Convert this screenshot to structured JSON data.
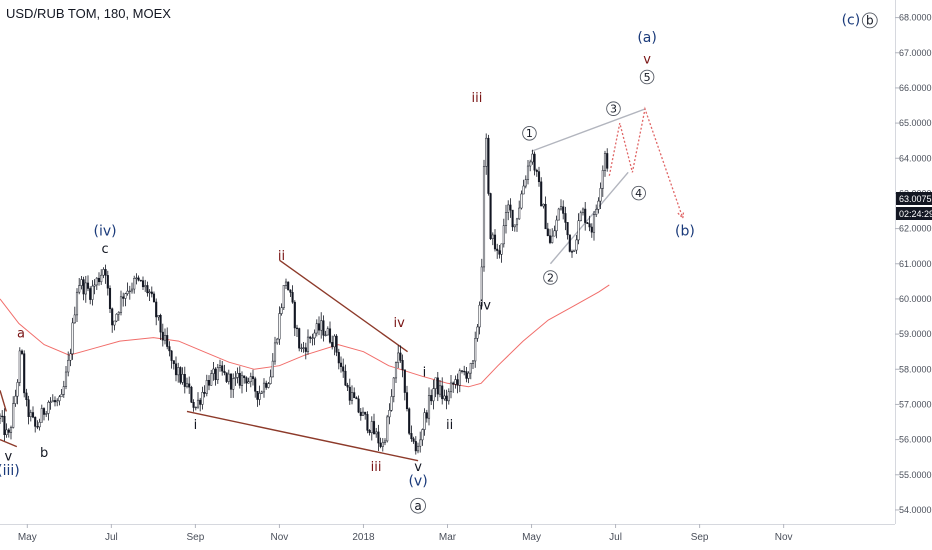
{
  "header": {
    "title": "USD/RUB TOM, 180, MOEX"
  },
  "price_badge": {
    "last_price": "63.0075",
    "countdown": "02:24:29",
    "color": "#131722"
  },
  "colors": {
    "candle": "#131722",
    "moving_average": "#ef5350",
    "trendline": "#8d3a2a",
    "triangle": "#b2b5be",
    "projection": "#e06666",
    "label_dark": "#131722",
    "label_red": "#7a1515",
    "label_blue": "#1a3a7a"
  },
  "chart_data": {
    "type": "candlestick",
    "symbol": "USD/RUB TOM",
    "interval": "180",
    "exchange": "MOEX",
    "y_ticks": [
      "54.0000",
      "55.0000",
      "56.0000",
      "57.0000",
      "58.0000",
      "59.0000",
      "60.0000",
      "61.0000",
      "62.0000",
      "63.0000",
      "64.0000",
      "65.0000",
      "66.0000",
      "67.0000",
      "68.0000"
    ],
    "ylim": [
      53.6,
      68.5
    ],
    "x_ticks": [
      "May",
      "Jul",
      "Sep",
      "Nov",
      "2018",
      "Mar",
      "May",
      "Jul",
      "Sep",
      "Nov"
    ],
    "x_tick_pos": [
      1.0,
      3.0,
      5.0,
      7.0,
      9.0,
      11.0,
      13.0,
      15.0,
      17.0,
      19.0
    ],
    "xlim": [
      0.35,
      21.65
    ],
    "price_path": [
      [
        0.35,
        56.6
      ],
      [
        0.55,
        56.0
      ],
      [
        0.75,
        57.5
      ],
      [
        0.85,
        58.7
      ],
      [
        0.95,
        57.0
      ],
      [
        1.2,
        56.3
      ],
      [
        1.5,
        57.1
      ],
      [
        1.8,
        57.0
      ],
      [
        2.0,
        58.3
      ],
      [
        2.2,
        60.5
      ],
      [
        2.5,
        60.2
      ],
      [
        2.7,
        60.6
      ],
      [
        2.85,
        61.0
      ],
      [
        3.0,
        59.2
      ],
      [
        3.3,
        60.2
      ],
      [
        3.6,
        60.5
      ],
      [
        3.9,
        60.2
      ],
      [
        4.2,
        59.0
      ],
      [
        4.5,
        58.0
      ],
      [
        4.8,
        57.5
      ],
      [
        5.0,
        56.9
      ],
      [
        5.3,
        57.7
      ],
      [
        5.6,
        57.9
      ],
      [
        5.9,
        57.6
      ],
      [
        6.2,
        57.8
      ],
      [
        6.5,
        57.3
      ],
      [
        6.8,
        57.9
      ],
      [
        7.0,
        59.5
      ],
      [
        7.15,
        60.6
      ],
      [
        7.3,
        59.8
      ],
      [
        7.5,
        58.5
      ],
      [
        7.8,
        59.0
      ],
      [
        8.0,
        59.2
      ],
      [
        8.3,
        58.8
      ],
      [
        8.6,
        57.5
      ],
      [
        8.9,
        56.8
      ],
      [
        9.2,
        56.3
      ],
      [
        9.45,
        55.8
      ],
      [
        9.65,
        57.0
      ],
      [
        9.85,
        58.7
      ],
      [
        10.05,
        56.5
      ],
      [
        10.25,
        55.6
      ],
      [
        10.45,
        56.6
      ],
      [
        10.7,
        57.6
      ],
      [
        10.95,
        57.1
      ],
      [
        11.15,
        57.6
      ],
      [
        11.4,
        57.9
      ],
      [
        11.6,
        58.0
      ],
      [
        11.8,
        60.3
      ],
      [
        11.9,
        65.1
      ],
      [
        12.0,
        62.0
      ],
      [
        12.2,
        61.2
      ],
      [
        12.45,
        62.6
      ],
      [
        12.6,
        62.1
      ],
      [
        12.8,
        63.2
      ],
      [
        13.0,
        64.2
      ],
      [
        13.2,
        63.0
      ],
      [
        13.45,
        61.5
      ],
      [
        13.7,
        62.7
      ],
      [
        13.95,
        61.3
      ],
      [
        14.2,
        62.5
      ],
      [
        14.45,
        62.0
      ],
      [
        14.6,
        63.0
      ],
      [
        14.75,
        64.2
      ],
      [
        14.85,
        63.5
      ]
    ],
    "moving_average": [
      [
        0.35,
        60.0
      ],
      [
        0.8,
        59.3
      ],
      [
        1.4,
        58.7
      ],
      [
        2.0,
        58.4
      ],
      [
        2.6,
        58.6
      ],
      [
        3.2,
        58.8
      ],
      [
        4.0,
        58.9
      ],
      [
        4.6,
        58.8
      ],
      [
        5.2,
        58.5
      ],
      [
        5.8,
        58.2
      ],
      [
        6.4,
        58.0
      ],
      [
        7.0,
        58.1
      ],
      [
        7.6,
        58.4
      ],
      [
        8.4,
        58.7
      ],
      [
        9.0,
        58.5
      ],
      [
        9.6,
        58.1
      ],
      [
        10.4,
        57.8
      ],
      [
        11.0,
        57.6
      ],
      [
        11.5,
        57.5
      ],
      [
        11.8,
        57.6
      ],
      [
        12.2,
        58.1
      ],
      [
        12.8,
        58.8
      ],
      [
        13.4,
        59.4
      ],
      [
        14.0,
        59.8
      ],
      [
        14.6,
        60.2
      ],
      [
        14.85,
        60.4
      ]
    ],
    "trendlines": [
      {
        "kind": "upper-wedge",
        "from": [
          7.0,
          61.1
        ],
        "to": [
          10.05,
          58.5
        ]
      },
      {
        "kind": "lower-wedge",
        "from": [
          4.8,
          56.8
        ],
        "to": [
          10.3,
          55.4
        ]
      },
      {
        "kind": "start-line",
        "from": [
          0.35,
          57.4
        ],
        "to": [
          0.5,
          56.8
        ]
      },
      {
        "kind": "start-line",
        "from": [
          0.35,
          56.0
        ],
        "to": [
          0.75,
          55.8
        ]
      },
      {
        "kind": "triangle-upper",
        "from": [
          13.0,
          64.2
        ],
        "to": [
          15.7,
          65.4
        ]
      },
      {
        "kind": "triangle-lower",
        "from": [
          13.45,
          61.0
        ],
        "to": [
          15.3,
          63.6
        ]
      }
    ],
    "projection": [
      [
        14.85,
        63.5
      ],
      [
        15.1,
        65.0
      ],
      [
        15.4,
        63.6
      ],
      [
        15.7,
        65.4
      ],
      [
        16.6,
        62.3
      ]
    ],
    "wave_labels": [
      {
        "text": "(iii)",
        "x": 0.55,
        "y": 55.0,
        "color": "blue",
        "circle": false,
        "size": 14
      },
      {
        "text": "v",
        "x": 0.55,
        "y": 55.4,
        "color": "dark",
        "circle": false,
        "size": 13
      },
      {
        "text": "a",
        "x": 0.85,
        "y": 58.9,
        "color": "red",
        "circle": false,
        "size": 13
      },
      {
        "text": "b",
        "x": 1.4,
        "y": 55.5,
        "color": "dark",
        "circle": false,
        "size": 13
      },
      {
        "text": "(iv)",
        "x": 2.85,
        "y": 61.8,
        "color": "blue",
        "circle": false,
        "size": 14
      },
      {
        "text": "c",
        "x": 2.85,
        "y": 61.3,
        "color": "dark",
        "circle": false,
        "size": 13
      },
      {
        "text": "i",
        "x": 5.0,
        "y": 56.3,
        "color": "dark",
        "circle": false,
        "size": 13
      },
      {
        "text": "ii",
        "x": 7.05,
        "y": 61.1,
        "color": "red",
        "circle": false,
        "size": 13
      },
      {
        "text": "iii",
        "x": 9.3,
        "y": 55.1,
        "color": "red",
        "circle": false,
        "size": 13
      },
      {
        "text": "iv",
        "x": 9.85,
        "y": 59.2,
        "color": "red",
        "circle": false,
        "size": 13
      },
      {
        "text": "v",
        "x": 10.3,
        "y": 55.1,
        "color": "dark",
        "circle": false,
        "size": 13
      },
      {
        "text": "(v)",
        "x": 10.3,
        "y": 54.7,
        "color": "blue",
        "circle": false,
        "size": 14
      },
      {
        "text": "a",
        "x": 10.3,
        "y": 54.0,
        "color": "dark",
        "circle": true,
        "size": 12
      },
      {
        "text": "i",
        "x": 10.45,
        "y": 57.8,
        "color": "dark",
        "circle": false,
        "size": 13
      },
      {
        "text": "ii",
        "x": 11.05,
        "y": 56.3,
        "color": "dark",
        "circle": false,
        "size": 13
      },
      {
        "text": "iii",
        "x": 11.7,
        "y": 65.6,
        "color": "red",
        "circle": false,
        "size": 13
      },
      {
        "text": "iv",
        "x": 11.9,
        "y": 59.7,
        "color": "dark",
        "circle": false,
        "size": 13
      },
      {
        "text": "1",
        "x": 12.95,
        "y": 64.6,
        "color": "dark",
        "circle": true,
        "size": 11
      },
      {
        "text": "2",
        "x": 13.45,
        "y": 60.5,
        "color": "dark",
        "circle": true,
        "size": 11
      },
      {
        "text": "3",
        "x": 14.95,
        "y": 65.3,
        "color": "dark",
        "circle": true,
        "size": 11
      },
      {
        "text": "4",
        "x": 15.55,
        "y": 62.9,
        "color": "dark",
        "circle": true,
        "size": 11
      },
      {
        "text": "5",
        "x": 15.75,
        "y": 66.2,
        "color": "dark",
        "circle": true,
        "size": 11
      },
      {
        "text": "v",
        "x": 15.75,
        "y": 66.7,
        "color": "red",
        "circle": false,
        "size": 13
      },
      {
        "text": "(a)",
        "x": 15.75,
        "y": 67.3,
        "color": "blue",
        "circle": false,
        "size": 14
      },
      {
        "text": "(b)",
        "x": 16.65,
        "y": 61.8,
        "color": "blue",
        "circle": false,
        "size": 14
      },
      {
        "text": "(c)",
        "x": 20.6,
        "y": 67.8,
        "color": "blue",
        "circle": false,
        "size": 14
      },
      {
        "text": "b",
        "x": 21.05,
        "y": 67.8,
        "color": "dark",
        "circle": true,
        "size": 12
      }
    ]
  }
}
